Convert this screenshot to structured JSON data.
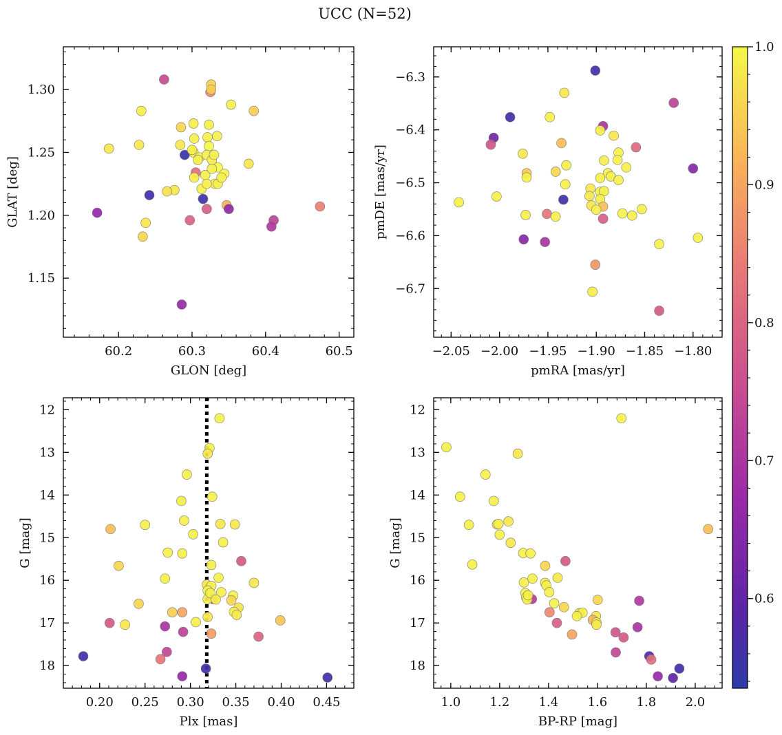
{
  "title": "UCC (N=52)",
  "colorbar": {
    "ticks": [
      "0.6",
      "0.7",
      "0.8",
      "0.9",
      "1.0"
    ],
    "tick_values": [
      0.6,
      0.7,
      0.8,
      0.9,
      1.0
    ],
    "range": [
      0.535,
      1.0
    ],
    "colormap": "plasma"
  },
  "chart_data": [
    {
      "type": "scatter",
      "xlabel": "GLON [deg]",
      "ylabel": "GLAT [deg]",
      "xlim": [
        60.125,
        60.52
      ],
      "ylim": [
        1.103,
        1.334
      ],
      "y_inverted": false,
      "xticks": [
        60.2,
        60.3,
        60.4,
        60.5
      ],
      "xtick_labels": [
        "60.2",
        "60.3",
        "60.4",
        "60.5"
      ],
      "yticks": [
        1.15,
        1.2,
        1.25,
        1.3
      ],
      "ytick_labels": [
        "1.15",
        "1.20",
        "1.25",
        "1.30"
      ],
      "points": [
        [
          60.262,
          1.308,
          0.75
        ],
        [
          60.325,
          1.298,
          0.86
        ],
        [
          60.326,
          1.304,
          0.95
        ],
        [
          60.231,
          1.283,
          0.99
        ],
        [
          60.353,
          1.288,
          0.99
        ],
        [
          60.384,
          1.283,
          0.95
        ],
        [
          60.302,
          1.273,
          0.99
        ],
        [
          60.323,
          1.272,
          0.99
        ],
        [
          60.285,
          1.27,
          0.96
        ],
        [
          60.334,
          1.263,
          0.99
        ],
        [
          60.303,
          1.261,
          0.99
        ],
        [
          60.321,
          1.262,
          0.99
        ],
        [
          60.284,
          1.256,
          0.98
        ],
        [
          60.228,
          1.256,
          0.98
        ],
        [
          60.187,
          1.253,
          0.98
        ],
        [
          60.323,
          1.255,
          1.0
        ],
        [
          60.302,
          1.25,
          0.99
        ],
        [
          60.29,
          1.248,
          0.55
        ],
        [
          60.31,
          1.246,
          0.99
        ],
        [
          60.32,
          1.248,
          0.99
        ],
        [
          60.327,
          1.244,
          0.99
        ],
        [
          60.377,
          1.241,
          0.98
        ],
        [
          60.335,
          1.238,
          1.0
        ],
        [
          60.305,
          1.234,
          0.82
        ],
        [
          60.318,
          1.232,
          0.99
        ],
        [
          60.327,
          1.237,
          0.99
        ],
        [
          60.344,
          1.233,
          0.99
        ],
        [
          60.313,
          1.221,
          0.99
        ],
        [
          60.331,
          1.225,
          0.99
        ],
        [
          60.335,
          1.225,
          0.99
        ],
        [
          60.32,
          1.225,
          0.99
        ],
        [
          60.303,
          1.23,
          0.99
        ],
        [
          60.276,
          1.22,
          0.98
        ],
        [
          60.266,
          1.219,
          0.97
        ],
        [
          60.242,
          1.216,
          0.56
        ],
        [
          60.315,
          1.213,
          0.56
        ],
        [
          60.347,
          1.208,
          0.92
        ],
        [
          60.35,
          1.205,
          0.66
        ],
        [
          60.32,
          1.205,
          0.79
        ],
        [
          60.171,
          1.202,
          0.66
        ],
        [
          60.474,
          1.207,
          0.85
        ],
        [
          60.411,
          1.196,
          0.73
        ],
        [
          60.408,
          1.191,
          0.71
        ],
        [
          60.297,
          1.196,
          0.8
        ],
        [
          60.237,
          1.194,
          0.98
        ],
        [
          60.233,
          1.183,
          0.96
        ],
        [
          60.286,
          1.129,
          0.67
        ],
        [
          60.326,
          1.3,
          0.95
        ],
        [
          60.3,
          1.252,
          0.99
        ],
        [
          60.34,
          1.23,
          0.99
        ],
        [
          60.308,
          1.244,
          0.99
        ],
        [
          60.33,
          1.248,
          0.99
        ]
      ]
    },
    {
      "type": "scatter",
      "xlabel": "pmRA [mas/yr]",
      "ylabel": "pmDE [mas/yr]",
      "xlim": [
        -2.068,
        -1.77
      ],
      "ylim": [
        -6.792,
        -6.243
      ],
      "y_inverted": false,
      "xticks": [
        -2.05,
        -2.0,
        -1.95,
        -1.9,
        -1.85,
        -1.8
      ],
      "xtick_labels": [
        "−2.05",
        "−2.00",
        "−1.95",
        "−1.90",
        "−1.85",
        "−1.80"
      ],
      "yticks": [
        -6.7,
        -6.6,
        -6.5,
        -6.4,
        -6.3
      ],
      "ytick_labels": [
        "−6.7",
        "−6.6",
        "−6.5",
        "−6.4",
        "−6.3"
      ],
      "points": [
        [
          -1.901,
          -6.288,
          0.56
        ],
        [
          -1.933,
          -6.33,
          0.98
        ],
        [
          -1.82,
          -6.349,
          0.73
        ],
        [
          -1.989,
          -6.376,
          0.56
        ],
        [
          -1.948,
          -6.376,
          0.99
        ],
        [
          -1.893,
          -6.393,
          0.7
        ],
        [
          -1.896,
          -6.401,
          0.99
        ],
        [
          -2.006,
          -6.415,
          0.62
        ],
        [
          -1.882,
          -6.411,
          0.98
        ],
        [
          -2.009,
          -6.428,
          0.77
        ],
        [
          -1.936,
          -6.425,
          0.93
        ],
        [
          -1.859,
          -6.433,
          0.81
        ],
        [
          -1.976,
          -6.445,
          0.98
        ],
        [
          -1.877,
          -6.443,
          0.99
        ],
        [
          -1.892,
          -6.458,
          0.99
        ],
        [
          -1.878,
          -6.457,
          0.99
        ],
        [
          -1.931,
          -6.467,
          0.99
        ],
        [
          -1.869,
          -6.471,
          0.99
        ],
        [
          -1.942,
          -6.479,
          0.96
        ],
        [
          -1.972,
          -6.482,
          0.94
        ],
        [
          -1.888,
          -6.482,
          0.99
        ],
        [
          -1.972,
          -6.49,
          0.99
        ],
        [
          -1.885,
          -6.488,
          0.99
        ],
        [
          -1.896,
          -6.491,
          0.99
        ],
        [
          -1.8,
          -6.473,
          0.64
        ],
        [
          -1.877,
          -6.495,
          0.99
        ],
        [
          -1.932,
          -6.503,
          0.99
        ],
        [
          -1.906,
          -6.511,
          0.98
        ],
        [
          -1.896,
          -6.517,
          0.99
        ],
        [
          -1.892,
          -6.516,
          0.99
        ],
        [
          -1.907,
          -6.525,
          0.98
        ],
        [
          -2.003,
          -6.526,
          0.99
        ],
        [
          -1.896,
          -6.531,
          0.99
        ],
        [
          -1.934,
          -6.532,
          0.56
        ],
        [
          -2.042,
          -6.537,
          0.99
        ],
        [
          -1.905,
          -6.543,
          0.98
        ],
        [
          -1.893,
          -6.545,
          0.93
        ],
        [
          -1.9,
          -6.551,
          0.99
        ],
        [
          -1.853,
          -6.55,
          0.99
        ],
        [
          -1.873,
          -6.558,
          0.99
        ],
        [
          -1.973,
          -6.561,
          0.99
        ],
        [
          -1.951,
          -6.559,
          0.83
        ],
        [
          -1.942,
          -6.564,
          0.99
        ],
        [
          -1.863,
          -6.562,
          0.99
        ],
        [
          -1.893,
          -6.568,
          0.79
        ],
        [
          -1.795,
          -6.604,
          0.99
        ],
        [
          -1.975,
          -6.607,
          0.65
        ],
        [
          -1.953,
          -6.612,
          0.7
        ],
        [
          -1.835,
          -6.616,
          0.99
        ],
        [
          -1.901,
          -6.655,
          0.88
        ],
        [
          -1.904,
          -6.706,
          0.99
        ],
        [
          -1.835,
          -6.742,
          0.78
        ]
      ]
    },
    {
      "type": "scatter",
      "xlabel": "Plx [mas]",
      "ylabel": "G [mag]",
      "xlim": [
        0.16,
        0.48
      ],
      "ylim": [
        18.53,
        11.72
      ],
      "y_inverted": true,
      "xticks": [
        0.2,
        0.25,
        0.3,
        0.35,
        0.4,
        0.45
      ],
      "xtick_labels": [
        "0.20",
        "0.25",
        "0.30",
        "0.35",
        "0.40",
        "0.45"
      ],
      "yticks": [
        12,
        13,
        14,
        15,
        16,
        17,
        18
      ],
      "ytick_labels": [
        "12",
        "13",
        "14",
        "15",
        "16",
        "17",
        "18"
      ],
      "vline": 0.318,
      "points": [
        [
          0.332,
          12.2,
          0.99
        ],
        [
          0.321,
          12.9,
          0.99
        ],
        [
          0.319,
          13.03,
          0.98
        ],
        [
          0.296,
          13.52,
          0.99
        ],
        [
          0.324,
          14.04,
          0.99
        ],
        [
          0.29,
          14.14,
          0.99
        ],
        [
          0.293,
          14.6,
          0.99
        ],
        [
          0.333,
          14.68,
          0.98
        ],
        [
          0.349,
          14.69,
          0.98
        ],
        [
          0.212,
          14.8,
          0.93
        ],
        [
          0.25,
          14.7,
          0.99
        ],
        [
          0.303,
          14.92,
          0.99
        ],
        [
          0.336,
          15.11,
          0.99
        ],
        [
          0.275,
          15.35,
          0.99
        ],
        [
          0.291,
          15.37,
          0.99
        ],
        [
          0.356,
          15.55,
          0.78
        ],
        [
          0.221,
          15.66,
          0.96
        ],
        [
          0.323,
          15.64,
          0.99
        ],
        [
          0.272,
          15.96,
          0.99
        ],
        [
          0.331,
          15.94,
          0.99
        ],
        [
          0.37,
          16.06,
          0.98
        ],
        [
          0.318,
          16.1,
          0.98
        ],
        [
          0.323,
          16.13,
          0.99
        ],
        [
          0.334,
          16.28,
          0.99
        ],
        [
          0.319,
          16.24,
          0.99
        ],
        [
          0.347,
          16.36,
          0.99
        ],
        [
          0.325,
          16.44,
          0.72
        ],
        [
          0.319,
          16.44,
          0.99
        ],
        [
          0.345,
          16.47,
          0.96
        ],
        [
          0.243,
          16.55,
          0.96
        ],
        [
          0.353,
          16.64,
          0.97
        ],
        [
          0.348,
          16.74,
          0.99
        ],
        [
          0.28,
          16.75,
          0.95
        ],
        [
          0.291,
          16.75,
          0.9
        ],
        [
          0.319,
          16.86,
          0.98
        ],
        [
          0.351,
          16.81,
          0.98
        ],
        [
          0.399,
          16.94,
          0.94
        ],
        [
          0.306,
          16.98,
          0.99
        ],
        [
          0.211,
          17.0,
          0.78
        ],
        [
          0.228,
          17.04,
          0.98
        ],
        [
          0.272,
          17.08,
          0.7
        ],
        [
          0.292,
          17.21,
          0.73
        ],
        [
          0.323,
          17.25,
          0.89
        ],
        [
          0.375,
          17.32,
          0.8
        ],
        [
          0.274,
          17.68,
          0.74
        ],
        [
          0.182,
          17.78,
          0.56
        ],
        [
          0.267,
          17.85,
          0.83
        ],
        [
          0.317,
          18.07,
          0.56
        ],
        [
          0.291,
          18.25,
          0.67
        ],
        [
          0.451,
          18.28,
          0.56
        ],
        [
          0.322,
          16.3,
          0.99
        ],
        [
          0.328,
          16.45,
          0.99
        ]
      ]
    },
    {
      "type": "scatter",
      "xlabel": "BP-RP [mag]",
      "ylabel": "G [mag]",
      "xlim": [
        0.93,
        2.11
      ],
      "ylim": [
        18.53,
        11.72
      ],
      "y_inverted": true,
      "xticks": [
        1.0,
        1.2,
        1.4,
        1.6,
        1.8,
        2.0
      ],
      "xtick_labels": [
        "1.0",
        "1.2",
        "1.4",
        "1.6",
        "1.8",
        "2.0"
      ],
      "yticks": [
        12,
        13,
        14,
        15,
        16,
        17,
        18
      ],
      "ytick_labels": [
        "12",
        "13",
        "14",
        "15",
        "16",
        "17",
        "18"
      ],
      "points": [
        [
          1.698,
          12.2,
          0.99
        ],
        [
          0.982,
          12.88,
          0.99
        ],
        [
          1.274,
          13.03,
          0.98
        ],
        [
          1.142,
          13.52,
          0.99
        ],
        [
          1.038,
          14.04,
          0.99
        ],
        [
          1.176,
          14.14,
          0.99
        ],
        [
          1.236,
          14.62,
          0.98
        ],
        [
          1.189,
          14.69,
          0.98
        ],
        [
          1.195,
          14.68,
          0.99
        ],
        [
          1.074,
          14.7,
          0.99
        ],
        [
          2.053,
          14.8,
          0.93
        ],
        [
          1.2,
          14.93,
          0.99
        ],
        [
          1.245,
          15.12,
          0.98
        ],
        [
          1.296,
          15.36,
          0.99
        ],
        [
          1.326,
          15.37,
          0.99
        ],
        [
          1.469,
          15.55,
          0.78
        ],
        [
          1.088,
          15.63,
          0.99
        ],
        [
          1.386,
          15.66,
          0.96
        ],
        [
          1.334,
          15.96,
          0.99
        ],
        [
          1.437,
          15.94,
          0.98
        ],
        [
          1.299,
          16.05,
          0.99
        ],
        [
          1.386,
          16.06,
          0.99
        ],
        [
          1.391,
          16.12,
          0.99
        ],
        [
          1.403,
          16.28,
          0.99
        ],
        [
          1.305,
          16.3,
          0.99
        ],
        [
          1.308,
          16.4,
          0.99
        ],
        [
          1.332,
          16.44,
          0.72
        ],
        [
          1.313,
          16.45,
          0.99
        ],
        [
          1.601,
          16.46,
          0.96
        ],
        [
          1.771,
          16.48,
          0.71
        ],
        [
          1.423,
          16.54,
          0.99
        ],
        [
          1.463,
          16.63,
          0.96
        ],
        [
          1.404,
          16.75,
          0.86
        ],
        [
          1.526,
          16.77,
          0.98
        ],
        [
          1.539,
          16.76,
          0.99
        ],
        [
          1.516,
          16.84,
          0.99
        ],
        [
          1.594,
          16.84,
          0.98
        ],
        [
          1.581,
          16.93,
          0.92
        ],
        [
          1.596,
          16.99,
          0.99
        ],
        [
          1.596,
          17.04,
          0.98
        ],
        [
          1.434,
          17.0,
          0.79
        ],
        [
          1.764,
          17.1,
          0.7
        ],
        [
          1.674,
          17.22,
          0.77
        ],
        [
          1.496,
          17.27,
          0.9
        ],
        [
          1.707,
          17.34,
          0.78
        ],
        [
          1.675,
          17.69,
          0.74
        ],
        [
          1.812,
          17.78,
          0.58
        ],
        [
          1.82,
          17.86,
          0.82
        ],
        [
          1.935,
          18.07,
          0.56
        ],
        [
          1.847,
          18.25,
          0.67
        ],
        [
          1.909,
          18.29,
          0.6
        ],
        [
          1.316,
          16.35,
          0.99
        ]
      ]
    }
  ]
}
